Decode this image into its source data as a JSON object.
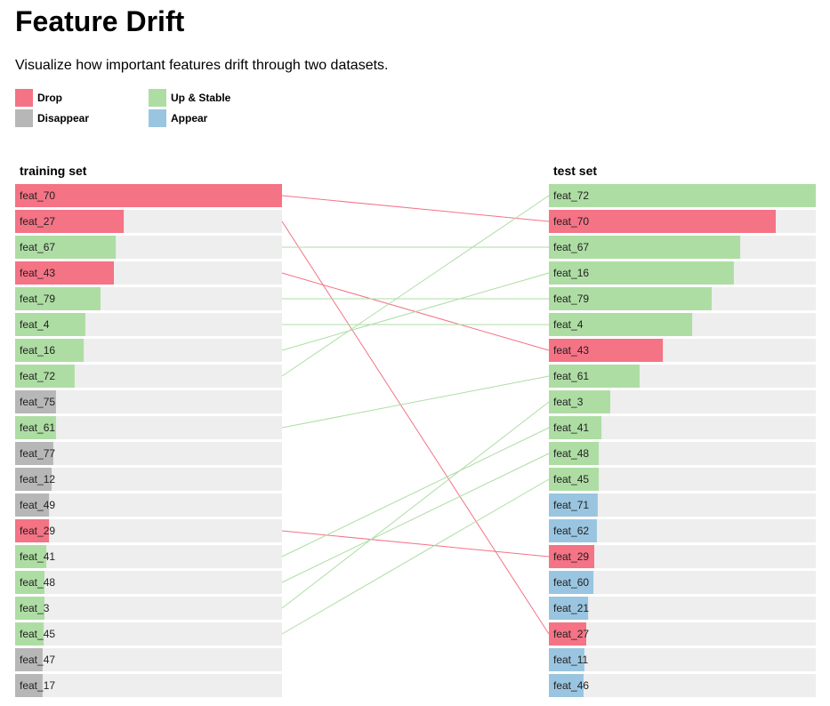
{
  "page": {
    "title": "Feature Drift",
    "subtitle": "Visualize how important features drift through two datasets."
  },
  "legend": [
    {
      "key": "drop",
      "label": "Drop",
      "color": "#f47385"
    },
    {
      "key": "up_stable",
      "label": "Up & Stable",
      "color": "#aedda4"
    },
    {
      "key": "disappear",
      "label": "Disappear",
      "color": "#b7b7b7"
    },
    {
      "key": "appear",
      "label": "Appear",
      "color": "#9ac5e0"
    }
  ],
  "chart_data": {
    "type": "bar",
    "bar_max_value": 1.0,
    "track_color": "#eeeeee",
    "link_colors": {
      "drop": "#f47385",
      "up_stable": "#aedda4"
    },
    "left": {
      "title": "training set",
      "bars": [
        {
          "label": "feat_70",
          "value": 1.0,
          "status": "drop"
        },
        {
          "label": "feat_27",
          "value": 0.407,
          "status": "drop"
        },
        {
          "label": "feat_67",
          "value": 0.377,
          "status": "up_stable"
        },
        {
          "label": "feat_43",
          "value": 0.37,
          "status": "drop"
        },
        {
          "label": "feat_79",
          "value": 0.32,
          "status": "up_stable"
        },
        {
          "label": "feat_4",
          "value": 0.263,
          "status": "up_stable"
        },
        {
          "label": "feat_16",
          "value": 0.257,
          "status": "up_stable"
        },
        {
          "label": "feat_72",
          "value": 0.223,
          "status": "up_stable"
        },
        {
          "label": "feat_75",
          "value": 0.153,
          "status": "disappear"
        },
        {
          "label": "feat_61",
          "value": 0.153,
          "status": "up_stable"
        },
        {
          "label": "feat_77",
          "value": 0.143,
          "status": "disappear"
        },
        {
          "label": "feat_12",
          "value": 0.137,
          "status": "disappear"
        },
        {
          "label": "feat_49",
          "value": 0.127,
          "status": "disappear"
        },
        {
          "label": "feat_29",
          "value": 0.127,
          "status": "drop"
        },
        {
          "label": "feat_41",
          "value": 0.117,
          "status": "up_stable"
        },
        {
          "label": "feat_48",
          "value": 0.11,
          "status": "up_stable"
        },
        {
          "label": "feat_3",
          "value": 0.11,
          "status": "up_stable"
        },
        {
          "label": "feat_45",
          "value": 0.107,
          "status": "up_stable"
        },
        {
          "label": "feat_47",
          "value": 0.103,
          "status": "disappear"
        },
        {
          "label": "feat_17",
          "value": 0.103,
          "status": "disappear"
        }
      ]
    },
    "right": {
      "title": "test set",
      "bars": [
        {
          "label": "feat_72",
          "value": 1.0,
          "status": "up_stable"
        },
        {
          "label": "feat_70",
          "value": 0.85,
          "status": "drop"
        },
        {
          "label": "feat_67",
          "value": 0.717,
          "status": "up_stable"
        },
        {
          "label": "feat_16",
          "value": 0.693,
          "status": "up_stable"
        },
        {
          "label": "feat_79",
          "value": 0.61,
          "status": "up_stable"
        },
        {
          "label": "feat_4",
          "value": 0.537,
          "status": "up_stable"
        },
        {
          "label": "feat_43",
          "value": 0.427,
          "status": "drop"
        },
        {
          "label": "feat_61",
          "value": 0.34,
          "status": "up_stable"
        },
        {
          "label": "feat_3",
          "value": 0.23,
          "status": "up_stable"
        },
        {
          "label": "feat_41",
          "value": 0.197,
          "status": "up_stable"
        },
        {
          "label": "feat_48",
          "value": 0.187,
          "status": "up_stable"
        },
        {
          "label": "feat_45",
          "value": 0.187,
          "status": "up_stable"
        },
        {
          "label": "feat_71",
          "value": 0.183,
          "status": "appear"
        },
        {
          "label": "feat_62",
          "value": 0.18,
          "status": "appear"
        },
        {
          "label": "feat_29",
          "value": 0.17,
          "status": "drop"
        },
        {
          "label": "feat_60",
          "value": 0.167,
          "status": "appear"
        },
        {
          "label": "feat_21",
          "value": 0.147,
          "status": "appear"
        },
        {
          "label": "feat_27",
          "value": 0.14,
          "status": "drop"
        },
        {
          "label": "feat_11",
          "value": 0.133,
          "status": "appear"
        },
        {
          "label": "feat_46",
          "value": 0.13,
          "status": "appear"
        }
      ]
    }
  }
}
